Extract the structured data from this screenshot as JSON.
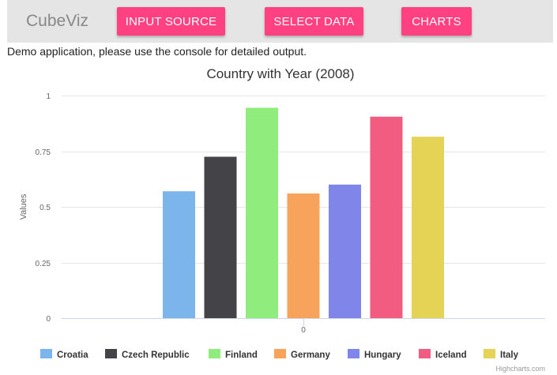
{
  "app": {
    "brand": "CubeViz",
    "nav": [
      {
        "label": "INPUT SOURCE"
      },
      {
        "label": "SELECT DATA"
      },
      {
        "label": "CHARTS"
      }
    ],
    "message": "Demo application, please use the console for detailed output.",
    "accent_color": "#ff4081"
  },
  "chart_data": {
    "type": "bar",
    "title": "Country with Year (2008)",
    "ylabel": "Values",
    "xlabel": "",
    "categories": [
      "0"
    ],
    "ylim": [
      0,
      1
    ],
    "yticks": [
      "0",
      "0.25",
      "0.5",
      "0.75",
      "1"
    ],
    "legend_position": "bottom",
    "credit": "Highcharts.com",
    "series": [
      {
        "name": "Croatia",
        "color": "#7cb5ec",
        "value": 0.57
      },
      {
        "name": "Czech Republic",
        "color": "#434348",
        "value": 0.725
      },
      {
        "name": "Finland",
        "color": "#90ed7d",
        "value": 0.945
      },
      {
        "name": "Germany",
        "color": "#f7a35c",
        "value": 0.56
      },
      {
        "name": "Hungary",
        "color": "#8085e9",
        "value": 0.6
      },
      {
        "name": "Iceland",
        "color": "#f15c80",
        "value": 0.905
      },
      {
        "name": "Italy",
        "color": "#e4d354",
        "value": 0.815
      }
    ]
  }
}
